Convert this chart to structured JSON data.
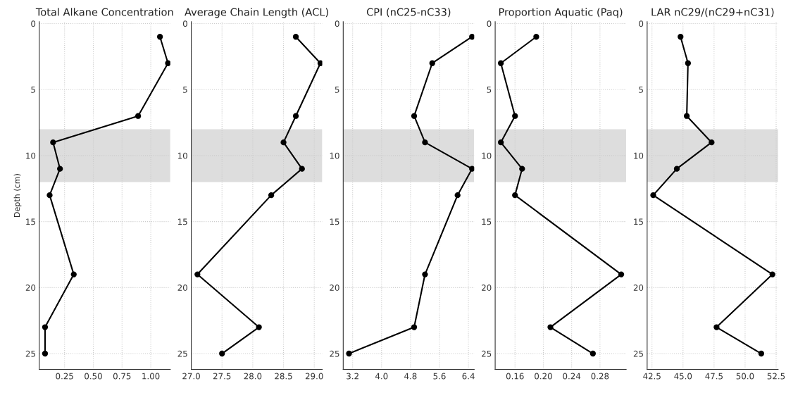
{
  "chart_data": [
    {
      "type": "line",
      "title": "Total Alkane Concentration",
      "ylabel": "Depth (cm)",
      "x": [
        1.08,
        1.15,
        0.89,
        0.15,
        0.21,
        0.12,
        0.33,
        0.08,
        0.08
      ],
      "values": [
        1,
        3,
        7,
        9,
        11,
        13,
        19,
        23,
        25
      ],
      "color": "#000000",
      "marker": "circle",
      "line_style": "solid",
      "xlim": [
        0.03,
        1.17
      ],
      "xticks": [
        {
          "value": 0.25,
          "label": "0.25"
        },
        {
          "value": 0.5,
          "label": "0.50"
        },
        {
          "value": 0.75,
          "label": "0.75"
        },
        {
          "value": 1.0,
          "label": "1.00"
        }
      ],
      "ylim": [
        26.2,
        -0.15
      ],
      "yticks": [
        0,
        5,
        10,
        15,
        20,
        25
      ],
      "grid": true,
      "bands": [
        {
          "axis": "y",
          "from": 8,
          "to": 12,
          "color": "#dddddd"
        }
      ]
    },
    {
      "type": "line",
      "title": "Average Chain Length (ACL)",
      "x": [
        28.7,
        29.1,
        28.7,
        28.5,
        28.8,
        28.3,
        27.1,
        28.1,
        27.5
      ],
      "values": [
        1,
        3,
        7,
        9,
        11,
        13,
        19,
        23,
        25
      ],
      "color": "#000000",
      "marker": "circle",
      "line_style": "solid",
      "xlim": [
        27.0,
        29.13
      ],
      "xticks": [
        {
          "value": 27.0,
          "label": "27.0"
        },
        27.5,
        {
          "value": 28.0,
          "label": "28.0"
        },
        28.5,
        {
          "value": 29.0,
          "label": "29.0"
        }
      ],
      "ylim": [
        26.2,
        -0.15
      ],
      "yticks": [
        0,
        5,
        10,
        15,
        20,
        25
      ],
      "grid": true,
      "bands": [
        {
          "axis": "y",
          "from": 8,
          "to": 12,
          "color": "#dddddd"
        }
      ]
    },
    {
      "type": "line",
      "title": "CPI (nC25-nC33)",
      "x": [
        6.5,
        5.4,
        4.9,
        5.2,
        6.5,
        6.1,
        5.2,
        4.9,
        3.1
      ],
      "values": [
        1,
        3,
        7,
        9,
        11,
        13,
        19,
        23,
        25
      ],
      "color": "#000000",
      "marker": "circle",
      "line_style": "solid",
      "xlim": [
        2.94,
        6.56
      ],
      "xticks": [
        3.2,
        {
          "value": 4.0,
          "label": "4.0"
        },
        4.8,
        5.6,
        6.4
      ],
      "ylim": [
        26.2,
        -0.15
      ],
      "yticks": [
        0,
        5,
        10,
        15,
        20,
        25
      ],
      "grid": true,
      "bands": [
        {
          "axis": "y",
          "from": 8,
          "to": 12,
          "color": "#dddddd"
        }
      ]
    },
    {
      "type": "line",
      "title": "Proportion Aquatic (Paq)",
      "x": [
        0.19,
        0.14,
        0.16,
        0.14,
        0.17,
        0.16,
        0.31,
        0.21,
        0.27
      ],
      "values": [
        1,
        3,
        7,
        9,
        11,
        13,
        19,
        23,
        25
      ],
      "color": "#000000",
      "marker": "circle",
      "line_style": "solid",
      "xlim": [
        0.132,
        0.317
      ],
      "xticks": [
        0.16,
        {
          "value": 0.2,
          "label": "0.20"
        },
        0.24,
        0.28
      ],
      "ylim": [
        26.2,
        -0.15
      ],
      "yticks": [
        0,
        5,
        10,
        15,
        20,
        25
      ],
      "grid": true,
      "bands": [
        {
          "axis": "y",
          "from": 8,
          "to": 12,
          "color": "#dddddd"
        }
      ]
    },
    {
      "type": "line",
      "title": "LAR nC29/(nC29+nC31)",
      "x": [
        44.8,
        45.4,
        45.3,
        47.3,
        44.5,
        42.6,
        52.2,
        47.7,
        51.3
      ],
      "values": [
        1,
        3,
        7,
        9,
        11,
        13,
        19,
        23,
        25
      ],
      "color": "#000000",
      "marker": "circle",
      "line_style": "solid",
      "xlim": [
        42.11,
        52.66
      ],
      "xticks": [
        42.5,
        {
          "value": 45.0,
          "label": "45.0"
        },
        47.5,
        {
          "value": 50.0,
          "label": "50.0"
        },
        52.5
      ],
      "ylim": [
        26.2,
        -0.15
      ],
      "yticks": [
        0,
        5,
        10,
        15,
        20,
        25
      ],
      "grid": true,
      "bands": [
        {
          "axis": "y",
          "from": 8,
          "to": 12,
          "color": "#dddddd"
        }
      ]
    }
  ]
}
